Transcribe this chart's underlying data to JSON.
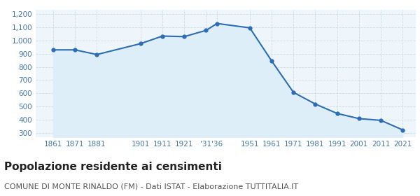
{
  "years": [
    1861,
    1871,
    1881,
    1901,
    1911,
    1921,
    1931,
    1936,
    1951,
    1961,
    1971,
    1981,
    1991,
    2001,
    2011,
    2021
  ],
  "population": [
    928,
    928,
    893,
    975,
    1032,
    1028,
    1075,
    1127,
    1094,
    845,
    608,
    520,
    449,
    410,
    397,
    325
  ],
  "line_color": "#2d6db5",
  "fill_color": "#ddeef8",
  "marker_color": "#2d6db5",
  "background_color": "#eef5fb",
  "grid_color": "#c8dcea",
  "title": "Popolazione residente ai censimenti",
  "subtitle": "COMUNE DI MONTE RINALDO (FM) - Dati ISTAT - Elaborazione TUTTITALIA.IT",
  "ylim": [
    270,
    1230
  ],
  "yticks": [
    300,
    400,
    500,
    600,
    700,
    800,
    900,
    1000,
    1100,
    1200
  ],
  "x_tick_positions": [
    1861,
    1871,
    1881,
    1901,
    1911,
    1921,
    1931,
    1936,
    1951,
    1961,
    1971,
    1981,
    1991,
    2001,
    2011,
    2021
  ],
  "x_tick_labels": [
    "1861",
    "1871",
    "1881",
    "1901",
    "1911",
    "1921",
    "'31",
    "'36",
    "1951",
    "1961",
    "1971",
    "1981",
    "1991",
    "2001",
    "2011",
    "2021"
  ],
  "xlim": [
    1853,
    2027
  ],
  "title_fontsize": 11,
  "subtitle_fontsize": 8,
  "tick_fontsize": 7.5,
  "ytick_fontsize": 7.5
}
